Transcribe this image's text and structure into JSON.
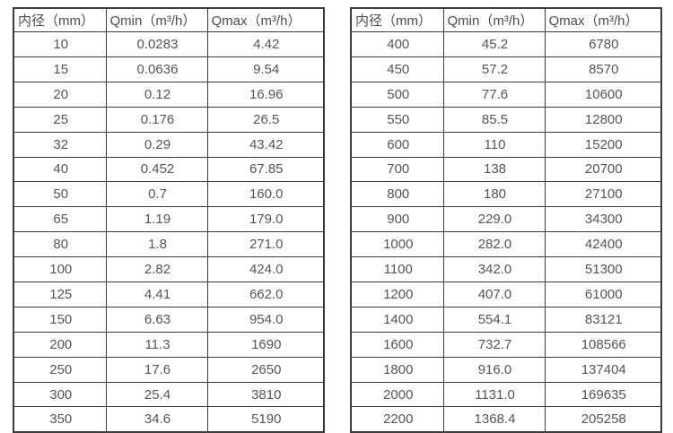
{
  "tables": [
    {
      "name": "flow-spec-small-diameters",
      "headers": [
        "内径（mm）",
        "Qmin（m³/h）",
        "Qmax（m³/h）"
      ],
      "rows": [
        [
          "10",
          "0.0283",
          "4.42"
        ],
        [
          "15",
          "0.0636",
          "9.54"
        ],
        [
          "20",
          "0.12",
          "16.96"
        ],
        [
          "25",
          "0.176",
          "26.5"
        ],
        [
          "32",
          "0.29",
          "43.42"
        ],
        [
          "40",
          "0.452",
          "67.85"
        ],
        [
          "50",
          "0.7",
          "160.0"
        ],
        [
          "65",
          "1.19",
          "179.0"
        ],
        [
          "80",
          "1.8",
          "271.0"
        ],
        [
          "100",
          "2.82",
          "424.0"
        ],
        [
          "125",
          "4.41",
          "662.0"
        ],
        [
          "150",
          "6.63",
          "954.0"
        ],
        [
          "200",
          "11.3",
          "1690"
        ],
        [
          "250",
          "17.6",
          "2650"
        ],
        [
          "300",
          "25.4",
          "3810"
        ],
        [
          "350",
          "34.6",
          "5190"
        ]
      ]
    },
    {
      "name": "flow-spec-large-diameters",
      "headers": [
        "内径（mm）",
        "Qmin（m³/h）",
        "Qmax（m³/h）"
      ],
      "rows": [
        [
          "400",
          "45.2",
          "6780"
        ],
        [
          "450",
          "57.2",
          "8570"
        ],
        [
          "500",
          "77.6",
          "10600"
        ],
        [
          "550",
          "85.5",
          "12800"
        ],
        [
          "600",
          "110",
          "15200"
        ],
        [
          "700",
          "138",
          "20700"
        ],
        [
          "800",
          "180",
          "27100"
        ],
        [
          "900",
          "229.0",
          "34300"
        ],
        [
          "1000",
          "282.0",
          "42400"
        ],
        [
          "1100",
          "342.0",
          "51300"
        ],
        [
          "1200",
          "407.0",
          "61000"
        ],
        [
          "1400",
          "554.1",
          "83121"
        ],
        [
          "1600",
          "732.7",
          "108566"
        ],
        [
          "1800",
          "916.0",
          "137404"
        ],
        [
          "2000",
          "1131.0",
          "169635"
        ],
        [
          "2200",
          "1368.4",
          "205258"
        ]
      ]
    }
  ],
  "colors": {
    "background": "#ffffff",
    "border": "#3b3b3b",
    "text": "#555555"
  }
}
